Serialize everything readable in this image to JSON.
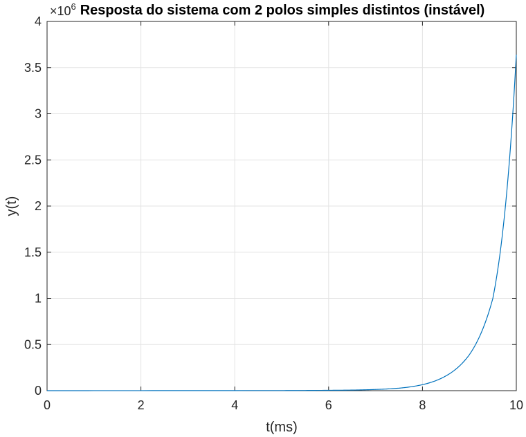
{
  "chart_data": {
    "type": "line",
    "title": "Resposta do sistema com 2 polos simples distintos (instável)",
    "xlabel": "t(ms)",
    "ylabel": "y(t)",
    "xlim": [
      0,
      10
    ],
    "ylim": [
      0,
      4
    ],
    "y_exponent_base": "×10",
    "y_exponent_power": "6",
    "xticks": [
      "0",
      "2",
      "4",
      "6",
      "8",
      "10"
    ],
    "yticks": [
      "0",
      "0.5",
      "1",
      "1.5",
      "2",
      "2.5",
      "3",
      "3.5",
      "4"
    ],
    "grid": true,
    "colors": {
      "line": "#0072BD",
      "grid": "#e3e3e3",
      "axis": "#262626"
    },
    "series": [
      {
        "x": [
          0,
          5.0,
          6.0,
          6.5,
          7.0,
          7.5,
          8.0,
          8.5,
          9.0,
          9.5,
          10.0
        ],
        "y": [
          0,
          0.0015,
          0.004,
          0.0065,
          0.013,
          0.027,
          0.065,
          0.16,
          0.39,
          1.0,
          3.64
        ]
      }
    ]
  }
}
